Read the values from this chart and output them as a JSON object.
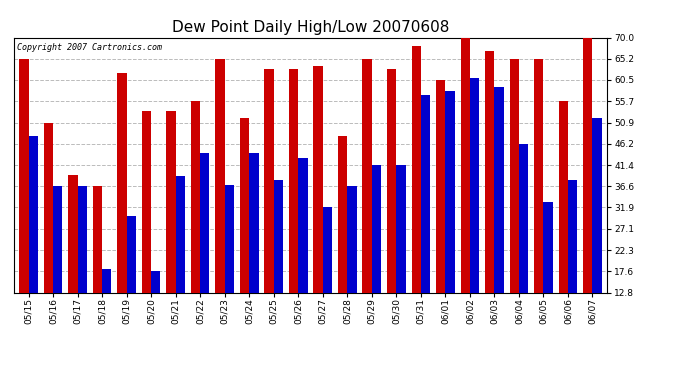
{
  "title": "Dew Point Daily High/Low 20070608",
  "copyright": "Copyright 2007 Cartronics.com",
  "categories": [
    "05/15",
    "05/16",
    "05/17",
    "05/18",
    "05/19",
    "05/20",
    "05/21",
    "05/22",
    "05/23",
    "05/24",
    "05/25",
    "05/26",
    "05/27",
    "05/28",
    "05/29",
    "05/30",
    "05/31",
    "06/01",
    "06/02",
    "06/03",
    "06/04",
    "06/05",
    "06/06",
    "06/07"
  ],
  "high_values": [
    65.2,
    50.9,
    39.2,
    36.6,
    62.0,
    53.6,
    53.6,
    55.7,
    65.2,
    52.0,
    63.0,
    63.0,
    63.5,
    48.0,
    65.2,
    63.0,
    68.0,
    60.5,
    71.0,
    67.0,
    65.2,
    65.2,
    55.7,
    70.0
  ],
  "low_values": [
    48.0,
    36.6,
    36.6,
    18.0,
    30.0,
    17.6,
    39.0,
    44.0,
    37.0,
    44.0,
    38.0,
    43.0,
    32.0,
    36.6,
    41.4,
    41.4,
    57.0,
    58.0,
    61.0,
    59.0,
    46.2,
    33.0,
    38.0,
    52.0
  ],
  "high_color": "#cc0000",
  "low_color": "#0000cc",
  "background_color": "#ffffff",
  "plot_background": "#ffffff",
  "yticks": [
    12.8,
    17.6,
    22.3,
    27.1,
    31.9,
    36.6,
    41.4,
    46.2,
    50.9,
    55.7,
    60.5,
    65.2,
    70.0
  ],
  "ylim_min": 12.8,
  "ylim_max": 70.0,
  "bar_width": 0.38,
  "title_fontsize": 11,
  "tick_fontsize": 6.5,
  "copyright_fontsize": 6,
  "grid_color": "#bbbbbb",
  "figwidth": 6.9,
  "figheight": 3.75,
  "dpi": 100
}
